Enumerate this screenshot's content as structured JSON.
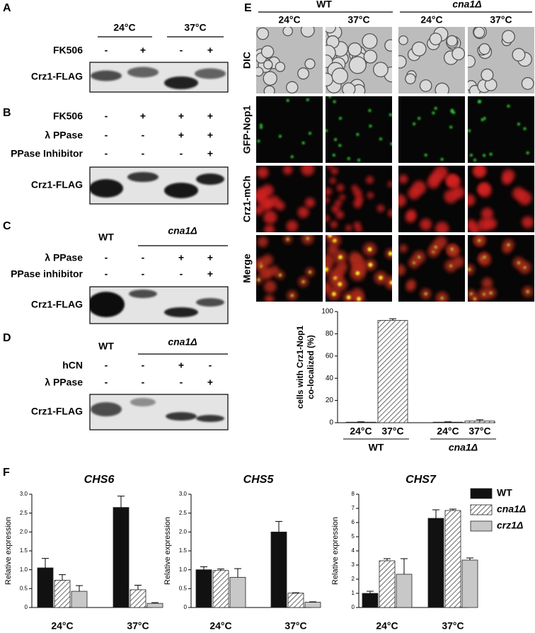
{
  "panel_labels": [
    "A",
    "B",
    "C",
    "D",
    "E",
    "F"
  ],
  "blots": [
    {
      "headers": [
        "24°C",
        "37°C"
      ],
      "rows": [
        {
          "name": "FK506",
          "marks": [
            "-",
            "+",
            "-",
            "+"
          ]
        }
      ],
      "target": "Crz1-FLAG"
    },
    {
      "rows": [
        {
          "name": "FK506",
          "marks": [
            "-",
            "+",
            "+",
            "+"
          ]
        },
        {
          "name": "λ PPase",
          "marks": [
            "-",
            "-",
            "+",
            "+"
          ]
        },
        {
          "name": "PPase Inhibitor",
          "marks": [
            "-",
            "-",
            "-",
            "+"
          ]
        }
      ],
      "target": "Crz1-FLAG"
    },
    {
      "headers": [
        "WT",
        "cna1Δ"
      ],
      "rows": [
        {
          "name": "λ PPase",
          "marks": [
            "-",
            "-",
            "+",
            "+"
          ]
        },
        {
          "name": "PPase inhibitor",
          "marks": [
            "-",
            "-",
            "-",
            "+"
          ]
        }
      ],
      "target": "Crz1-FLAG"
    },
    {
      "headers": [
        "WT",
        "cna1Δ"
      ],
      "rows": [
        {
          "name": "hCN",
          "marks": [
            "-",
            "-",
            "+",
            "-"
          ]
        },
        {
          "name": "λ PPase",
          "marks": [
            "-",
            "-",
            "-",
            "+"
          ]
        }
      ],
      "target": "Crz1-FLAG"
    }
  ],
  "microscopy": {
    "strains": [
      "WT",
      "cna1Δ"
    ],
    "temperatures": [
      "24°C",
      "37°C",
      "24°C",
      "37°C"
    ],
    "channels": [
      "DIC",
      "GFP-Nop1",
      "Crz1-mCh",
      "Merge"
    ]
  },
  "chart_data": [
    {
      "type": "bar",
      "ylabel": [
        "cells with Crz1-Nop1",
        "co-localized (%)"
      ],
      "categories": [
        "24°C",
        "37°C",
        "24°C",
        "37°C"
      ],
      "groups": [
        "WT",
        "cna1Δ"
      ],
      "values": [
        0.5,
        92,
        0.5,
        1.5
      ],
      "errors": [
        0.3,
        1.5,
        0.3,
        1.2
      ],
      "color": "#ffffff",
      "pattern": "diagonal",
      "ylim": [
        0,
        100
      ],
      "yticks": [
        0,
        20,
        40,
        60,
        80,
        100
      ]
    },
    {
      "type": "bar",
      "title": "CHS6",
      "ylabel": [
        "Relative expression"
      ],
      "categories": [
        "24°C",
        "37°C"
      ],
      "series": [
        {
          "color": "#111111",
          "values": [
            1.05,
            2.65
          ],
          "errors": [
            0.25,
            0.3
          ]
        },
        {
          "color": "#ffffff",
          "pattern": "diagonal",
          "values": [
            0.72,
            0.47
          ],
          "errors": [
            0.15,
            0.12
          ]
        },
        {
          "color": "#c8c8c8",
          "values": [
            0.43,
            0.11
          ],
          "errors": [
            0.15,
            0.02
          ]
        }
      ],
      "ylim": [
        0,
        3
      ],
      "yticks": [
        0,
        0.5,
        {
          "value": 1,
          "label": "1.0"
        },
        1.5,
        {
          "value": 2,
          "label": "2.0"
        },
        2.5,
        {
          "value": 3,
          "label": "3.0"
        }
      ]
    },
    {
      "type": "bar",
      "title": "CHS5",
      "ylabel": [
        "Relative expression"
      ],
      "categories": [
        "24°C",
        "37°C"
      ],
      "series": [
        {
          "color": "#111111",
          "values": [
            1.0,
            2.0
          ],
          "errors": [
            0.08,
            0.28
          ]
        },
        {
          "color": "#ffffff",
          "pattern": "diagonal",
          "values": [
            0.98,
            0.38
          ],
          "errors": [
            0.04,
            0.01
          ]
        },
        {
          "color": "#c8c8c8",
          "values": [
            0.8,
            0.14
          ],
          "errors": [
            0.23,
            0.01
          ]
        }
      ],
      "ylim": [
        0,
        3
      ],
      "yticks": [
        0,
        0.5,
        {
          "value": 1,
          "label": "1.0"
        },
        1.5,
        {
          "value": 2,
          "label": "2.0"
        },
        2.5,
        {
          "value": 3,
          "label": "3.0"
        }
      ]
    },
    {
      "type": "bar",
      "title": "CHS7",
      "ylabel": [
        "Relative expression"
      ],
      "categories": [
        "24°C",
        "37°C"
      ],
      "series": [
        {
          "name": "WT",
          "color": "#111111",
          "values": [
            1.0,
            6.3
          ],
          "errors": [
            0.15,
            0.6
          ]
        },
        {
          "name": "cna1Δ",
          "color": "#ffffff",
          "pattern": "diagonal",
          "values": [
            3.3,
            6.85
          ],
          "errors": [
            0.15,
            0.1
          ]
        },
        {
          "name": "crz1Δ",
          "color": "#c8c8c8",
          "values": [
            2.35,
            3.35
          ],
          "errors": [
            1.1,
            0.15
          ]
        }
      ],
      "ylim": [
        0,
        8
      ],
      "yticks": [
        0,
        1,
        2,
        3,
        4,
        5,
        6,
        7,
        8
      ],
      "legend": "right"
    }
  ]
}
